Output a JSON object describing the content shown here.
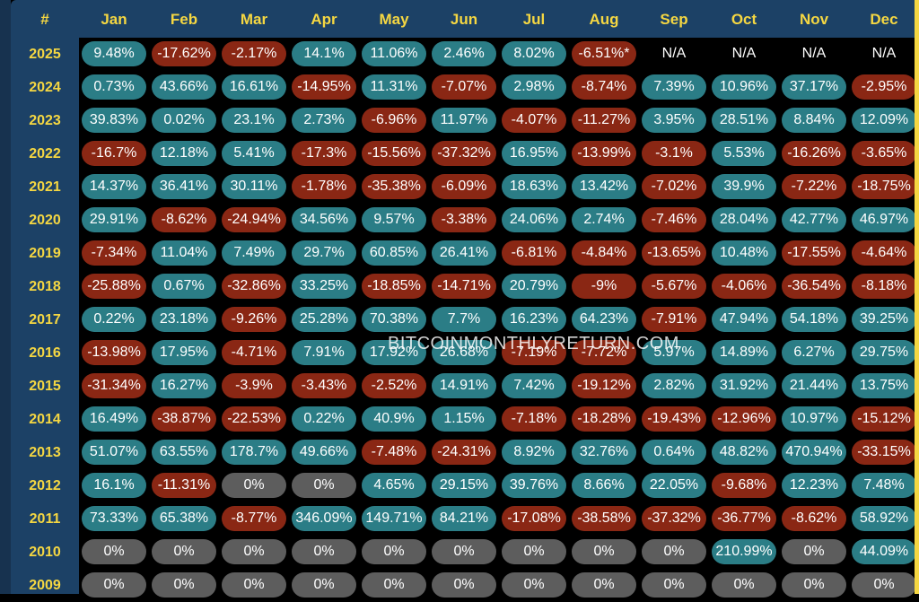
{
  "watermark": "BITCOINMONTHLYRETURN.COM",
  "colors": {
    "positive": "#2b7d86",
    "negative": "#8a2714",
    "zero": "#5d5d5d",
    "header_bg": "#1c4166",
    "accent": "#f5d742"
  },
  "chart_data": {
    "type": "table",
    "corner_label": "#",
    "columns": [
      "Jan",
      "Feb",
      "Mar",
      "Apr",
      "May",
      "Jun",
      "Jul",
      "Aug",
      "Sep",
      "Oct",
      "Nov",
      "Dec"
    ],
    "rows": [
      {
        "year": "2025",
        "values": [
          "9.48%",
          "-17.62%",
          "-2.17%",
          "14.1%",
          "11.06%",
          "2.46%",
          "8.02%",
          "-6.51%*",
          "N/A",
          "N/A",
          "N/A",
          "N/A"
        ]
      },
      {
        "year": "2024",
        "values": [
          "0.73%",
          "43.66%",
          "16.61%",
          "-14.95%",
          "11.31%",
          "-7.07%",
          "2.98%",
          "-8.74%",
          "7.39%",
          "10.96%",
          "37.17%",
          "-2.95%"
        ]
      },
      {
        "year": "2023",
        "values": [
          "39.83%",
          "0.02%",
          "23.1%",
          "2.73%",
          "-6.96%",
          "11.97%",
          "-4.07%",
          "-11.27%",
          "3.95%",
          "28.51%",
          "8.84%",
          "12.09%"
        ]
      },
      {
        "year": "2022",
        "values": [
          "-16.7%",
          "12.18%",
          "5.41%",
          "-17.3%",
          "-15.56%",
          "-37.32%",
          "16.95%",
          "-13.99%",
          "-3.1%",
          "5.53%",
          "-16.26%",
          "-3.65%"
        ]
      },
      {
        "year": "2021",
        "values": [
          "14.37%",
          "36.41%",
          "30.11%",
          "-1.78%",
          "-35.38%",
          "-6.09%",
          "18.63%",
          "13.42%",
          "-7.02%",
          "39.9%",
          "-7.22%",
          "-18.75%"
        ]
      },
      {
        "year": "2020",
        "values": [
          "29.91%",
          "-8.62%",
          "-24.94%",
          "34.56%",
          "9.57%",
          "-3.38%",
          "24.06%",
          "2.74%",
          "-7.46%",
          "28.04%",
          "42.77%",
          "46.97%"
        ]
      },
      {
        "year": "2019",
        "values": [
          "-7.34%",
          "11.04%",
          "7.49%",
          "29.7%",
          "60.85%",
          "26.41%",
          "-6.81%",
          "-4.84%",
          "-13.65%",
          "10.48%",
          "-17.55%",
          "-4.64%"
        ]
      },
      {
        "year": "2018",
        "values": [
          "-25.88%",
          "0.67%",
          "-32.86%",
          "33.25%",
          "-18.85%",
          "-14.71%",
          "20.79%",
          "-9%",
          "-5.67%",
          "-4.06%",
          "-36.54%",
          "-8.18%"
        ]
      },
      {
        "year": "2017",
        "values": [
          "0.22%",
          "23.18%",
          "-9.26%",
          "25.28%",
          "70.38%",
          "7.7%",
          "16.23%",
          "64.23%",
          "-7.91%",
          "47.94%",
          "54.18%",
          "39.25%"
        ]
      },
      {
        "year": "2016",
        "values": [
          "-13.98%",
          "17.95%",
          "-4.71%",
          "7.91%",
          "17.92%",
          "26.68%",
          "-7.19%",
          "-7.72%",
          "5.97%",
          "14.89%",
          "6.27%",
          "29.75%"
        ]
      },
      {
        "year": "2015",
        "values": [
          "-31.34%",
          "16.27%",
          "-3.9%",
          "-3.43%",
          "-2.52%",
          "14.91%",
          "7.42%",
          "-19.12%",
          "2.82%",
          "31.92%",
          "21.44%",
          "13.75%"
        ]
      },
      {
        "year": "2014",
        "values": [
          "16.49%",
          "-38.87%",
          "-22.53%",
          "0.22%",
          "40.9%",
          "1.15%",
          "-7.18%",
          "-18.28%",
          "-19.43%",
          "-12.96%",
          "10.97%",
          "-15.12%"
        ]
      },
      {
        "year": "2013",
        "values": [
          "51.07%",
          "63.55%",
          "178.7%",
          "49.66%",
          "-7.48%",
          "-24.31%",
          "8.92%",
          "32.76%",
          "0.64%",
          "48.82%",
          "470.94%",
          "-33.15%"
        ]
      },
      {
        "year": "2012",
        "values": [
          "16.1%",
          "-11.31%",
          "0%",
          "0%",
          "4.65%",
          "29.15%",
          "39.76%",
          "8.66%",
          "22.05%",
          "-9.68%",
          "12.23%",
          "7.48%"
        ]
      },
      {
        "year": "2011",
        "values": [
          "73.33%",
          "65.38%",
          "-8.77%",
          "346.09%",
          "149.71%",
          "84.21%",
          "-17.08%",
          "-38.58%",
          "-37.32%",
          "-36.77%",
          "-8.62%",
          "58.92%"
        ]
      },
      {
        "year": "2010",
        "values": [
          "0%",
          "0%",
          "0%",
          "0%",
          "0%",
          "0%",
          "0%",
          "0%",
          "0%",
          "210.99%",
          "0%",
          "44.09%"
        ]
      },
      {
        "year": "2009",
        "values": [
          "0%",
          "0%",
          "0%",
          "0%",
          "0%",
          "0%",
          "0%",
          "0%",
          "0%",
          "0%",
          "0%",
          "0%"
        ]
      }
    ]
  }
}
